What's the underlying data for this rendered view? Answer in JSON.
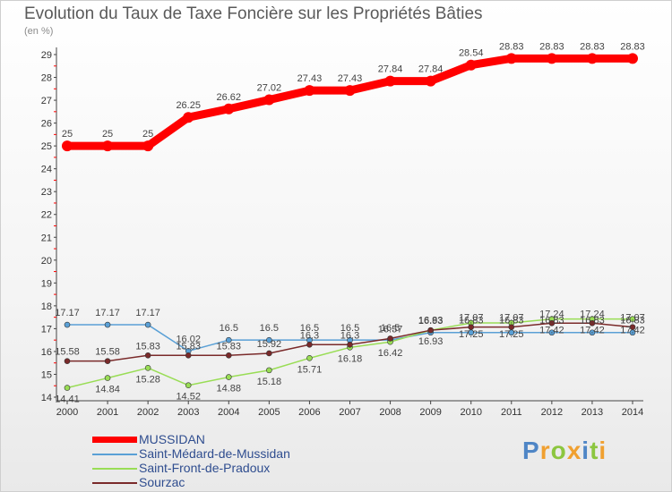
{
  "title": "Evolution du Taux de Taxe Foncière sur les Propriétés Bâties",
  "unit_label": "(en %)",
  "logo_text": "Proxiti",
  "chart_data": {
    "type": "line",
    "title": "Evolution du Taux de Taxe Foncière sur les Propriétés Bâties",
    "ylabel": "(en %)",
    "xlabel": "",
    "x": [
      "2000",
      "2001",
      "2002",
      "2003",
      "2004",
      "2005",
      "2006",
      "2007",
      "2008",
      "2009",
      "2010",
      "2011",
      "2012",
      "2013",
      "2014"
    ],
    "ylim": [
      14,
      29
    ],
    "yticks": [
      "14",
      "15",
      "16",
      "17",
      "18",
      "19",
      "20",
      "21",
      "22",
      "23",
      "24",
      "25",
      "26",
      "27",
      "28",
      "29"
    ],
    "grid": false,
    "legend_position": "bottom-left",
    "series": [
      {
        "name": "MUSSIDAN",
        "color": "#ff0000",
        "values": [
          25,
          25,
          25,
          26.25,
          26.62,
          27.02,
          27.43,
          27.43,
          27.84,
          27.84,
          28.54,
          28.83,
          28.83,
          28.83,
          28.83
        ],
        "labels": [
          "25",
          "25",
          "25",
          "26.25",
          "26.62",
          "27.02",
          "27.43",
          "27.43",
          "27.84",
          "27.84",
          "28.54",
          "28.83",
          "28.83",
          "28.83",
          "28.83"
        ]
      },
      {
        "name": "Saint-Médard-de-Mussidan",
        "color": "#5aa0d6",
        "values": [
          17.17,
          17.17,
          17.17,
          16.02,
          16.5,
          16.5,
          16.5,
          16.5,
          16.5,
          16.83,
          16.83,
          16.83,
          16.83,
          16.83,
          16.83
        ],
        "labels": [
          "17.17",
          "17.17",
          "17.17",
          "16.02",
          "16.5",
          "16.5",
          "16.5",
          "16.5",
          "16.5",
          "16.83",
          "16.83",
          "16.83",
          "16.83",
          "16.83",
          "16.83"
        ]
      },
      {
        "name": "Saint-Front-de-Pradoux",
        "color": "#99dd55",
        "values": [
          14.41,
          14.84,
          15.28,
          14.52,
          14.88,
          15.18,
          15.71,
          16.18,
          16.42,
          16.93,
          17.25,
          17.25,
          17.42,
          17.42,
          17.42
        ],
        "labels": [
          "14.41",
          "14.84",
          "15.28",
          "14.52",
          "14.88",
          "15.18",
          "15.71",
          "16.18",
          "16.42",
          "16.93",
          "17.25",
          "17.25",
          "17.42",
          "17.42",
          "17.42"
        ]
      },
      {
        "name": "Sourzac",
        "color": "#7a2a2a",
        "values": [
          15.58,
          15.58,
          15.83,
          15.83,
          15.83,
          15.92,
          16.3,
          16.3,
          16.57,
          16.93,
          17.07,
          17.07,
          17.24,
          17.24,
          17.07
        ],
        "labels": [
          "15.58",
          "15.58",
          "15.83",
          "15.83",
          "15.83",
          "15.92",
          "16.3",
          "16.3",
          "16.57",
          "16.93",
          "17.07",
          "17.07",
          "17.24",
          "17.24",
          "17.07"
        ]
      }
    ]
  }
}
